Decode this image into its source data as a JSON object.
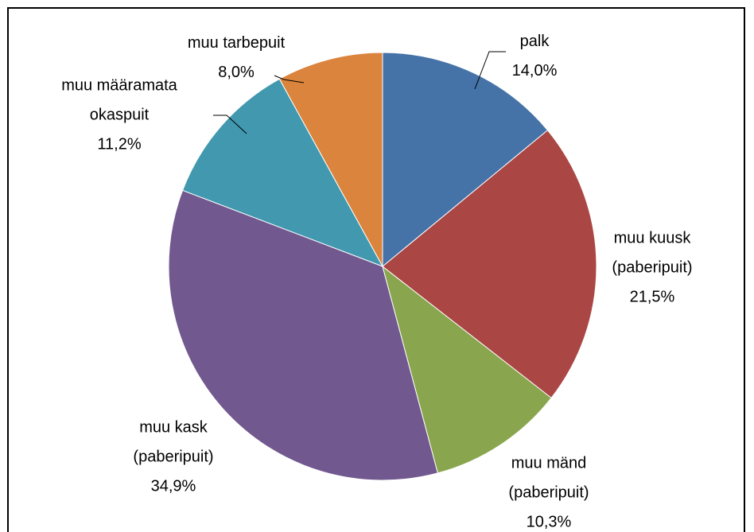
{
  "chart_data": {
    "type": "pie",
    "categories": [
      "palk",
      "muu kuusk\n(paberipuit)",
      "muu mänd\n(paberipuit)",
      "muu kask\n(paberipuit)",
      "muu määramata\nokaspuit",
      "muu tarbepuit"
    ],
    "values": [
      14.0,
      21.5,
      10.3,
      34.9,
      11.2,
      8.0
    ],
    "value_labels": [
      "14,0%",
      "21,5%",
      "10,3%",
      "34,9%",
      "11,2%",
      "8,0%"
    ],
    "colors": [
      "#4572a7",
      "#aa4643",
      "#89a54e",
      "#71588f",
      "#4198af",
      "#db843d"
    ]
  }
}
